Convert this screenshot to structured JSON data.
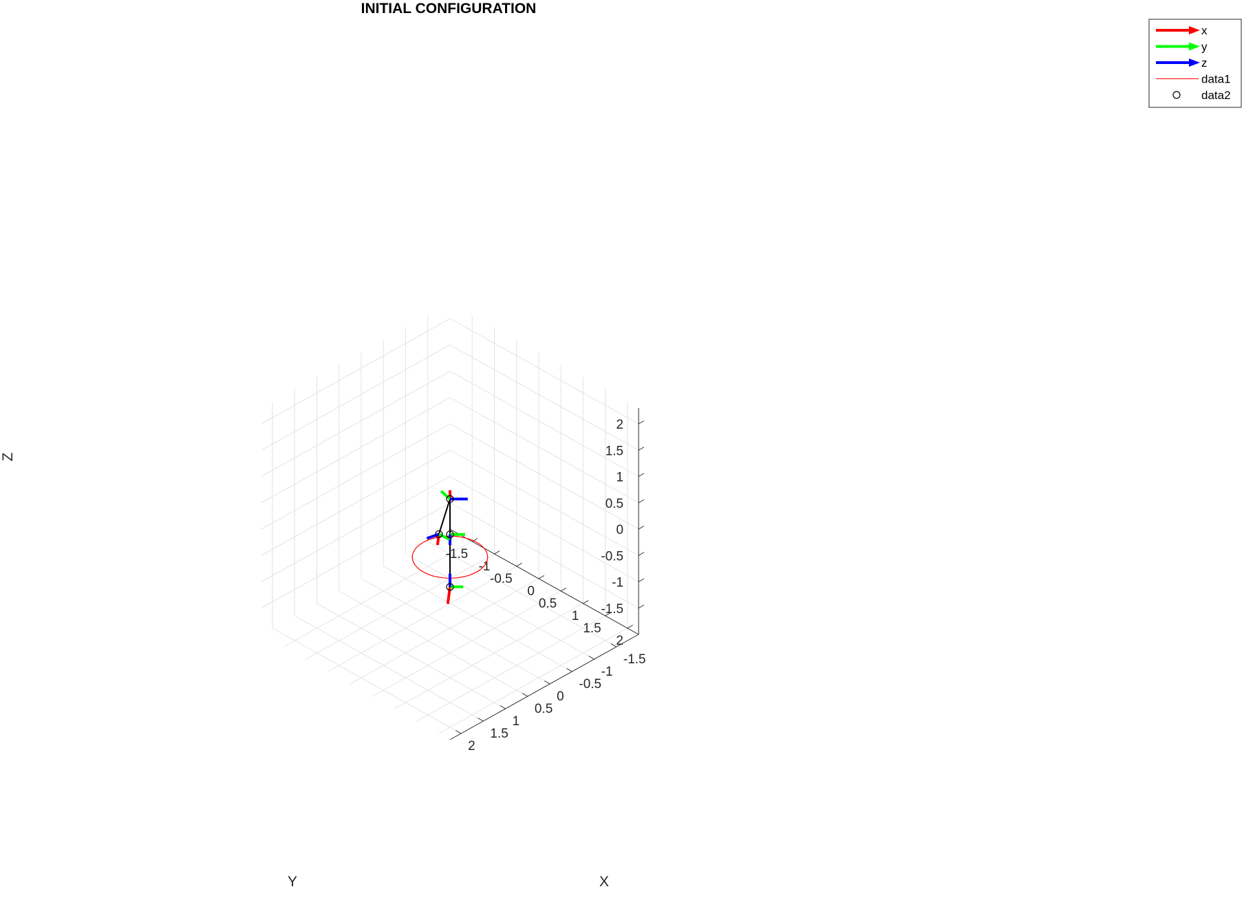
{
  "chart_data": {
    "type": "line3d",
    "title": "INITIAL CONFIGURATION",
    "xlabel": "X",
    "ylabel": "Y",
    "zlabel": "Z",
    "xlim": [
      -2,
      2.25
    ],
    "ylim": [
      -2,
      2.25
    ],
    "zlim": [
      -2,
      2.3
    ],
    "xticks": [
      -1.5,
      -1,
      -0.5,
      0,
      0.5,
      1,
      1.5,
      2
    ],
    "xtick_labels": [
      "-1.5",
      "-1",
      "-0.5",
      "0",
      "0.5",
      "1",
      "1.5",
      "2"
    ],
    "yticks": [
      -1.5,
      -1,
      -0.5,
      0,
      0.5,
      1,
      1.5,
      2
    ],
    "ytick_labels": [
      "-1.5",
      "-1",
      "-0.5",
      "0",
      "0.5",
      "1",
      "1.5",
      "2"
    ],
    "zticks": [
      -1.5,
      -1,
      -0.5,
      0,
      0.5,
      1,
      1.5,
      2
    ],
    "ztick_labels": [
      "-1.5",
      "-1",
      "-0.5",
      "0",
      "0.5",
      "1",
      "1.5",
      "2"
    ],
    "grid": true,
    "legend_position": "top-right",
    "legend": [
      {
        "label": "x",
        "kind": "arrow",
        "color": "#ff0000"
      },
      {
        "label": "y",
        "kind": "arrow",
        "color": "#00ff00"
      },
      {
        "label": "z",
        "kind": "arrow",
        "color": "#0000ff"
      },
      {
        "label": "data1",
        "kind": "line",
        "color": "#ff0000"
      },
      {
        "label": "data2",
        "kind": "marker",
        "color": "#000000"
      }
    ],
    "series": [
      {
        "name": "data1",
        "style": "ellipse",
        "color": "#ff0000",
        "center": [
          0,
          0,
          -0.65
        ],
        "radii": [
          0.6,
          0.6
        ]
      },
      {
        "name": "data2",
        "style": "line-markers",
        "color": "#000000",
        "points": [
          {
            "x": 0.6,
            "y": 0.6,
            "z": -0.65
          },
          {
            "x": 0.69,
            "y": 0.69,
            "z": 0.43
          },
          {
            "x": 0.42,
            "y": 0.42,
            "z": 0.85
          },
          {
            "x": 0.5,
            "y": 0.25,
            "z": 0.14
          }
        ]
      }
    ],
    "frames": [
      {
        "at": 0,
        "x": [
          0.1,
          0.05,
          -0.25
        ],
        "y": [
          -0.15,
          0.15,
          0
        ],
        "z": [
          0,
          0,
          0.25
        ]
      },
      {
        "at": 1,
        "x": [
          0.05,
          0.05,
          -0.06
        ],
        "y": [
          -0.17,
          0.17,
          0
        ],
        "z": [
          0,
          0,
          -0.2
        ]
      },
      {
        "at": 2,
        "x": [
          -0.05,
          -0.05,
          0.12
        ],
        "y": [
          0.1,
          -0.1,
          0.15
        ],
        "z": [
          -0.2,
          0.2,
          0
        ]
      },
      {
        "at": 3,
        "x": [
          0.15,
          0.12,
          -0.08
        ],
        "y": [
          -0.12,
          0.12,
          -0.1
        ],
        "z": [
          0.22,
          -0.05,
          0
        ]
      }
    ]
  },
  "colors": {
    "grid": "#e3e3e3",
    "axis": "#262626",
    "x_arrow": "#ff0000",
    "y_arrow": "#00ff00",
    "z_arrow": "#0000ff"
  }
}
